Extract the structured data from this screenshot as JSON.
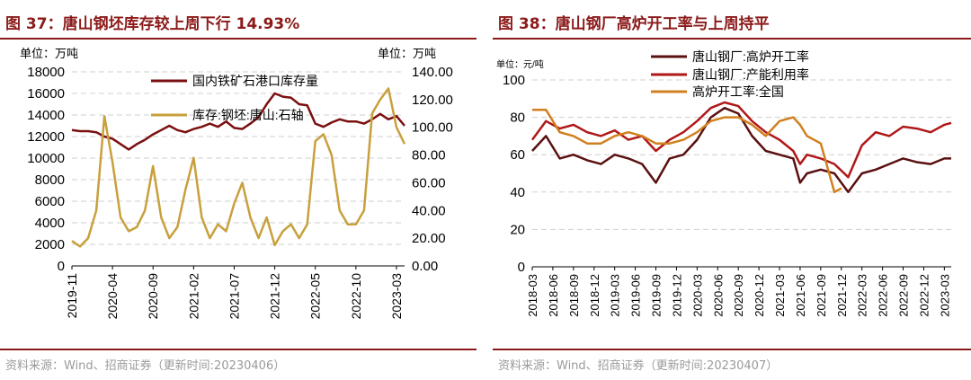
{
  "panels": [
    {
      "title": "图 37：唐山钢坯库存较上周下行 14.93%",
      "source": "资料来源：Wind、招商证券（更新时间:20230406）"
    },
    {
      "title": "图 38：唐山钢厂高炉开工率与上周持平",
      "source": "资料来源：Wind、招商证券（更新时间:20230407）"
    }
  ],
  "chart_data": [
    {
      "type": "line",
      "unit_left": "单位：万吨",
      "unit_right": "单位：万吨",
      "x_ticks": [
        "2019-11",
        "2020-04",
        "2020-09",
        "2021-02",
        "2021-07",
        "2021-12",
        "2022-05",
        "2022-10",
        "2023-03"
      ],
      "x_range": [
        "2019-11",
        "2023-04"
      ],
      "y_left": {
        "ticks": [
          "0",
          "2000",
          "4000",
          "6000",
          "8000",
          "10000",
          "12000",
          "14000",
          "16000",
          "18000"
        ],
        "lim": [
          0,
          18000
        ]
      },
      "y_right": {
        "ticks": [
          "0.00",
          "20.00",
          "40.00",
          "60.00",
          "80.00",
          "100.00",
          "120.00",
          "140.00"
        ],
        "lim": [
          0,
          140
        ]
      },
      "grid": true,
      "legend_position": "top-center",
      "series": [
        {
          "name": "国内铁矿石港口库存量",
          "axis": "left",
          "color": "#7b1010",
          "x": [
            "2019-11",
            "2019-12",
            "2020-01",
            "2020-02",
            "2020-03",
            "2020-04",
            "2020-05",
            "2020-06",
            "2020-07",
            "2020-08",
            "2020-09",
            "2020-10",
            "2020-11",
            "2020-12",
            "2021-01",
            "2021-02",
            "2021-03",
            "2021-04",
            "2021-05",
            "2021-06",
            "2021-07",
            "2021-08",
            "2021-09",
            "2021-10",
            "2021-11",
            "2021-12",
            "2022-01",
            "2022-02",
            "2022-03",
            "2022-04",
            "2022-05",
            "2022-06",
            "2022-07",
            "2022-08",
            "2022-09",
            "2022-10",
            "2022-11",
            "2022-12",
            "2023-01",
            "2023-02",
            "2023-03",
            "2023-04"
          ],
          "values": [
            12600,
            12500,
            12500,
            12400,
            12000,
            11800,
            11300,
            10800,
            11300,
            11700,
            12200,
            12600,
            13000,
            12600,
            12400,
            12700,
            12900,
            13200,
            12900,
            13400,
            12800,
            12700,
            13200,
            13800,
            15000,
            16000,
            15700,
            15600,
            15000,
            14900,
            13200,
            12900,
            13300,
            13600,
            13400,
            13400,
            13200,
            13600,
            14100,
            13600,
            13900,
            13000
          ]
        },
        {
          "name": "库存:钢坯:唐山:石轴",
          "axis": "right",
          "color": "#c8a03c",
          "x": [
            "2019-11",
            "2019-12",
            "2020-01",
            "2020-02",
            "2020-03",
            "2020-04",
            "2020-05",
            "2020-06",
            "2020-07",
            "2020-08",
            "2020-09",
            "2020-10",
            "2020-11",
            "2020-12",
            "2021-01",
            "2021-02",
            "2021-03",
            "2021-04",
            "2021-05",
            "2021-06",
            "2021-07",
            "2021-08",
            "2021-09",
            "2021-10",
            "2021-11",
            "2021-12",
            "2022-01",
            "2022-02",
            "2022-03",
            "2022-04",
            "2022-05",
            "2022-06",
            "2022-07",
            "2022-08",
            "2022-09",
            "2022-10",
            "2022-11",
            "2022-12",
            "2023-01",
            "2023-02",
            "2023-03",
            "2023-04"
          ],
          "values": [
            18,
            14,
            20,
            40,
            108,
            75,
            35,
            25,
            28,
            40,
            72,
            35,
            20,
            28,
            55,
            78,
            35,
            20,
            30,
            25,
            45,
            60,
            35,
            20,
            35,
            15,
            25,
            30,
            20,
            30,
            90,
            95,
            80,
            40,
            30,
            30,
            40,
            110,
            120,
            128,
            100,
            88
          ]
        }
      ]
    },
    {
      "type": "line",
      "unit": "单位：元/吨",
      "x_ticks": [
        "2018-03",
        "2018-06",
        "2018-09",
        "2018-12",
        "2019-03",
        "2019-06",
        "2019-09",
        "2019-12",
        "2020-03",
        "2020-06",
        "2020-09",
        "2020-12",
        "2021-03",
        "2021-06",
        "2021-09",
        "2021-12",
        "2022-03",
        "2022-06",
        "2022-09",
        "2022-12",
        "2023-03"
      ],
      "x_range": [
        "2018-03",
        "2023-04"
      ],
      "y_ticks": [
        "0",
        "20",
        "40",
        "60",
        "80",
        "100"
      ],
      "ylim": [
        0,
        100
      ],
      "grid": true,
      "legend_position": "top-center",
      "series": [
        {
          "name": "唐山钢厂:高炉开工率",
          "color": "#5a1010",
          "x": [
            "2018-03",
            "2018-05",
            "2018-07",
            "2018-09",
            "2018-11",
            "2019-01",
            "2019-03",
            "2019-05",
            "2019-07",
            "2019-09",
            "2019-11",
            "2020-01",
            "2020-03",
            "2020-05",
            "2020-07",
            "2020-09",
            "2020-11",
            "2021-01",
            "2021-03",
            "2021-05",
            "2021-06",
            "2021-07",
            "2021-09",
            "2021-11",
            "2022-01",
            "2022-03",
            "2022-05",
            "2022-07",
            "2022-09",
            "2022-11",
            "2023-01",
            "2023-03",
            "2023-04"
          ],
          "values": [
            62,
            70,
            58,
            60,
            57,
            55,
            60,
            58,
            55,
            45,
            58,
            60,
            68,
            80,
            85,
            82,
            70,
            62,
            60,
            58,
            45,
            50,
            52,
            50,
            40,
            50,
            52,
            55,
            58,
            56,
            55,
            58,
            58
          ]
        },
        {
          "name": "唐山钢厂:产能利用率",
          "color": "#b01818",
          "x": [
            "2018-03",
            "2018-05",
            "2018-07",
            "2018-09",
            "2018-11",
            "2019-01",
            "2019-03",
            "2019-05",
            "2019-07",
            "2019-09",
            "2019-11",
            "2020-01",
            "2020-03",
            "2020-05",
            "2020-07",
            "2020-09",
            "2020-11",
            "2021-01",
            "2021-03",
            "2021-05",
            "2021-06",
            "2021-07",
            "2021-09",
            "2021-11",
            "2022-01",
            "2022-03",
            "2022-05",
            "2022-07",
            "2022-09",
            "2022-11",
            "2023-01",
            "2023-03",
            "2023-04"
          ],
          "values": [
            68,
            78,
            74,
            76,
            72,
            70,
            73,
            68,
            70,
            62,
            68,
            72,
            78,
            85,
            88,
            86,
            78,
            72,
            68,
            62,
            55,
            60,
            58,
            55,
            48,
            65,
            72,
            70,
            75,
            74,
            72,
            76,
            77
          ]
        },
        {
          "name": "高炉开工率:全国",
          "color": "#d08020",
          "x": [
            "2018-03",
            "2018-05",
            "2018-07",
            "2018-09",
            "2018-11",
            "2019-01",
            "2019-03",
            "2019-05",
            "2019-07",
            "2019-09",
            "2019-11",
            "2020-01",
            "2020-03",
            "2020-05",
            "2020-07",
            "2020-09",
            "2020-11",
            "2021-01",
            "2021-03",
            "2021-05",
            "2021-06",
            "2021-07",
            "2021-09",
            "2021-11",
            "2021-12"
          ],
          "values": [
            84,
            84,
            72,
            70,
            66,
            66,
            70,
            72,
            70,
            66,
            66,
            68,
            72,
            78,
            80,
            80,
            76,
            70,
            78,
            80,
            76,
            70,
            66,
            40,
            42
          ]
        }
      ]
    }
  ]
}
